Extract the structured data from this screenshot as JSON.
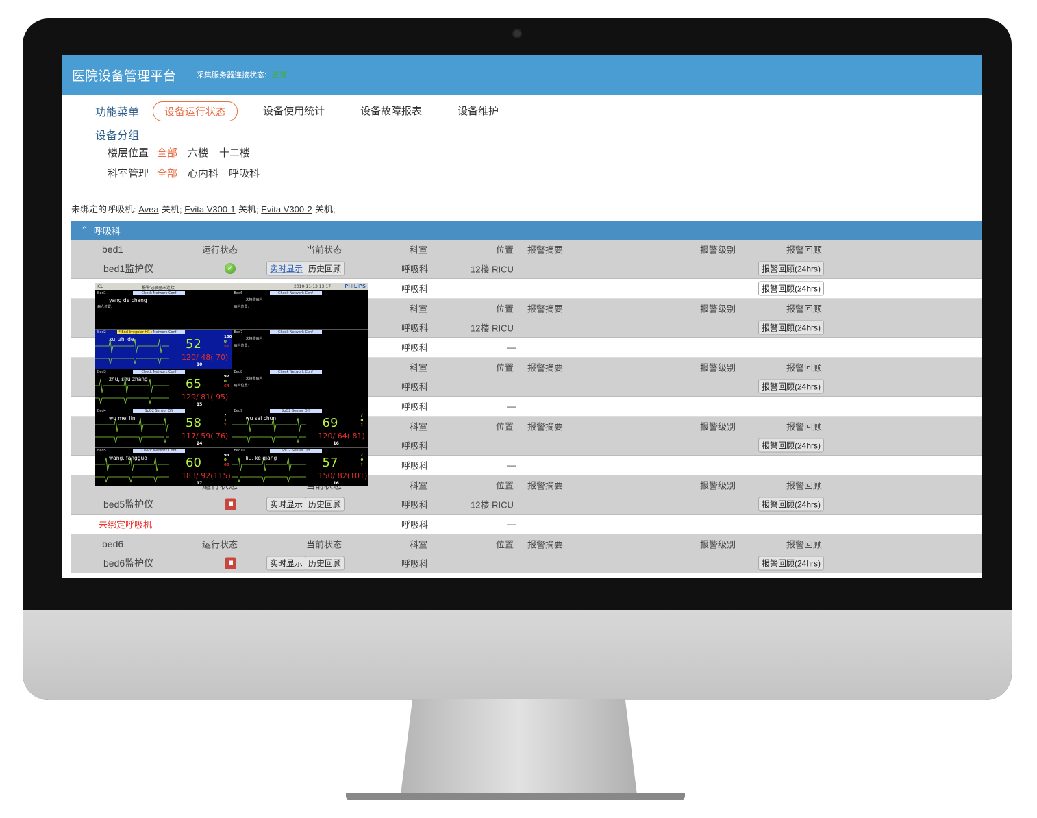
{
  "header": {
    "title": "医院设备管理平台",
    "conn_label": "采集服务器连接状态:",
    "conn_status": "正常",
    "conn_color": "#3fae3f"
  },
  "menu": {
    "label": "功能菜单",
    "items": [
      "设备运行状态",
      "设备使用统计",
      "设备故障报表",
      "设备维护"
    ],
    "active": 0
  },
  "groups": {
    "label": "设备分组",
    "floor_label": "楼层位置",
    "floors": [
      "全部",
      "六楼",
      "十二楼"
    ],
    "dept_label": "科室管理",
    "depts": [
      "全部",
      "心内科",
      "呼吸科"
    ]
  },
  "unbound": {
    "label": "未绑定的呼吸机:",
    "items": [
      {
        "name": "Avea",
        "status": "-关机;"
      },
      {
        "name": "Evita V300-1",
        "status": "-关机;"
      },
      {
        "name": "Evita V300-2",
        "status": "-关机;"
      }
    ]
  },
  "group_title": "呼吸科",
  "columns": {
    "status": "运行状态",
    "current": "当前状态",
    "dept": "科室",
    "loc": "位置",
    "summary": "报警摘要",
    "level": "报警级别",
    "review": "报警回顾"
  },
  "buttons": {
    "live": "实时显示",
    "history": "历史回顾",
    "review": "报警回顾(24hrs)"
  },
  "blocks": [
    {
      "bed": "bed1",
      "device": "bed1监护仪",
      "status": "ok",
      "dept": "呼吸科",
      "loc": "12楼 RICU",
      "vent": "",
      "vent_dept": "呼吸科",
      "vent_loc": "",
      "vent_review": true
    },
    {
      "bed": "",
      "device": "",
      "status": "",
      "dept": "呼吸科",
      "loc": "12楼 RICU",
      "vent": "",
      "vent_dept": "呼吸科",
      "vent_loc": "—",
      "vent_review": false
    },
    {
      "bed": "",
      "device": "",
      "status": "",
      "dept": "呼吸科",
      "loc": "",
      "vent": "",
      "vent_dept": "呼吸科",
      "vent_loc": "—",
      "vent_review": false
    },
    {
      "bed": "",
      "device": "",
      "status": "",
      "dept": "呼吸科",
      "loc": "",
      "vent": "",
      "vent_dept": "呼吸科",
      "vent_loc": "—",
      "vent_review": false
    },
    {
      "bed": "",
      "device": "bed5监护仪",
      "status": "off",
      "dept": "呼吸科",
      "loc": "12楼 RICU",
      "vent": "未绑定呼吸机",
      "vent_dept": "呼吸科",
      "vent_loc": "—",
      "vent_review": false
    },
    {
      "bed": "bed6",
      "device": "bed6监护仪",
      "status": "off",
      "dept": "呼吸科",
      "loc": ""
    }
  ],
  "monitor_popup": {
    "unit": "ICU",
    "notice": "报警记录器未连接",
    "datetime": "2010-11-13  13:17",
    "brand": "PHILIPS",
    "panels": [
      {
        "bed": "Bed1",
        "msg": "Check Network Conf",
        "name": "yang de chang",
        "pos": "病人位置:"
      },
      {
        "bed": "Bed6",
        "msg": "Check Network Conf",
        "name": "未接收病人",
        "pos": "病人位置:"
      },
      {
        "bed": "Bed2",
        "msg": "Check Network Conf",
        "alarm": "* End Irregular HR",
        "name": "xu, zhi de",
        "hr": "52",
        "nbp": "120/ 48( 70)",
        "spo2": "100",
        "pvc": "0",
        "pulse": "51",
        "resp": "10"
      },
      {
        "bed": "Bed7",
        "msg": "Check Network Conf",
        "name": "未接收病人",
        "pos": "病人位置:"
      },
      {
        "bed": "Bed3",
        "msg": "Check Network Conf",
        "name": "zhu, shu zhang",
        "hr": "65",
        "nbp": "129/ 81( 95)",
        "spo2": "97",
        "pvc": "0",
        "pulse": "64",
        "resp": "15"
      },
      {
        "bed": "Bed8",
        "msg": "Check Network Conf",
        "name": "未接收病人",
        "pos": "病人位置:"
      },
      {
        "bed": "Bed4",
        "msg": "SpO2  Sensor Off",
        "name": "wu mei lin",
        "hr": "58",
        "nbp": "117/ 59( 76)",
        "spo2": "?",
        "pvc": "1",
        "pulse": "?",
        "resp": "24"
      },
      {
        "bed": "Bed9",
        "msg": "SpO2  Sensor Off",
        "name": "wu sai chun",
        "hr": "69",
        "nbp": "120/ 64( 81)",
        "spo2": "?",
        "pvc": "0",
        "pulse": "?",
        "resp": "16"
      },
      {
        "bed": "Bed5",
        "msg": "Check Network Conf",
        "name": "wang, fangguo",
        "hr": "60",
        "nbp": "183/ 92(115)",
        "spo2": "93",
        "pvc": "0",
        "pulse": "60",
        "resp": "17"
      },
      {
        "bed": "Bed10",
        "msg": "SpO2  Sensor Off",
        "name": "liu, ke qiang",
        "hr": "57",
        "nbp": "150/ 82(101)",
        "spo2": "?",
        "pvc": "0",
        "pulse": "?",
        "resp": "16"
      }
    ]
  },
  "colors": {
    "accent": "#4a9dd3",
    "active": "#e8704a",
    "alert": "#e8332a"
  }
}
